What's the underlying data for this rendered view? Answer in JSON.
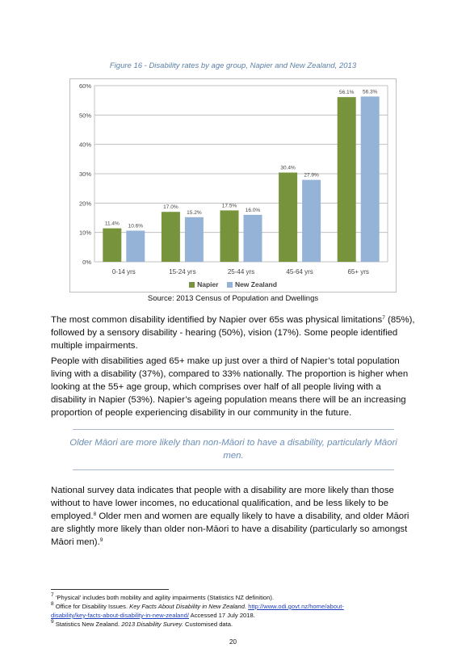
{
  "figure": {
    "title": "Figure 16 - Disability rates by age group, Napier and New Zealand, 2013",
    "source": "Source: 2013 Census of Population and Dwellings"
  },
  "chart_data": {
    "type": "bar",
    "title": "",
    "xlabel": "",
    "ylabel": "",
    "categories": [
      "0-14 yrs",
      "15-24 yrs",
      "25-44 yrs",
      "45-64 yrs",
      "65+ yrs"
    ],
    "series": [
      {
        "name": "Napier",
        "values": [
          11.4,
          17.0,
          17.5,
          30.4,
          56.1
        ],
        "labels": [
          "11.4%",
          "17.0%",
          "17.5%",
          "30.4%",
          "56.1%"
        ],
        "color": "#77933c"
      },
      {
        "name": "New Zealand",
        "values": [
          10.6,
          15.2,
          16.0,
          27.9,
          56.3
        ],
        "labels": [
          "10.6%",
          "15.2%",
          "16.0%",
          "27.9%",
          "56.3%"
        ],
        "color": "#95b3d7"
      }
    ],
    "ylim": [
      0,
      60
    ],
    "yticks": [
      0,
      10,
      20,
      30,
      40,
      50,
      60
    ],
    "ytick_labels": [
      "0%",
      "10%",
      "20%",
      "30%",
      "40%",
      "50%",
      "60%"
    ],
    "grid": true,
    "legend": "bottom"
  },
  "body": {
    "p1_a": "The most common disability identified by Napier over 65s was physical limitations",
    "p1_fn": "7",
    "p1_b": " (85%), followed by a sensory disability - hearing (50%), vision (17%). Some people identified multiple impairments.",
    "p2": "People with disabilities aged 65+ make up just over a third of Napier’s total population living with a disability (37%), compared to 33% nationally. The proportion is higher when looking at the 55+ age group, which comprises over half of all people living with a disability in Napier (53%). Napier’s ageing population means there will be an increasing proportion of people experiencing disability in our community in the future.",
    "pullquote": "Older Māori are more likely than non-Māori to have a disability, particularly Māori men.",
    "p3_a": "National survey data indicates that people with a disability are more likely than those without to have lower incomes, no educational qualification, and be less likely to be employed.",
    "p3_fn1": "8",
    "p3_b": " Older men and women are equally likely to have a disability, and older Māori are slightly more likely than older non-Māori to have a disability (particularly so amongst Māori men).",
    "p3_fn2": "9"
  },
  "footnotes": {
    "f7_num": "7",
    "f7_text": " ‘Physical’ includes both mobility and agility impairments (Statistics NZ definition).",
    "f8_num": "8",
    "f8_a": " Office for Disability Issues. ",
    "f8_title": "Key Facts About Disability in New Zealand.",
    "f8_link1": "http://www.odi.govt.nz/home/about-",
    "f8_link2": "disability/key-facts-about-disability-in-new-zealand/",
    "f8_b": " Accessed 17 July 2018.",
    "f9_num": "9",
    "f9_a": " Statistics New Zealand. ",
    "f9_title": "2013 Disability Survey.",
    "f9_b": " Customised data."
  },
  "page": {
    "number": "20"
  }
}
